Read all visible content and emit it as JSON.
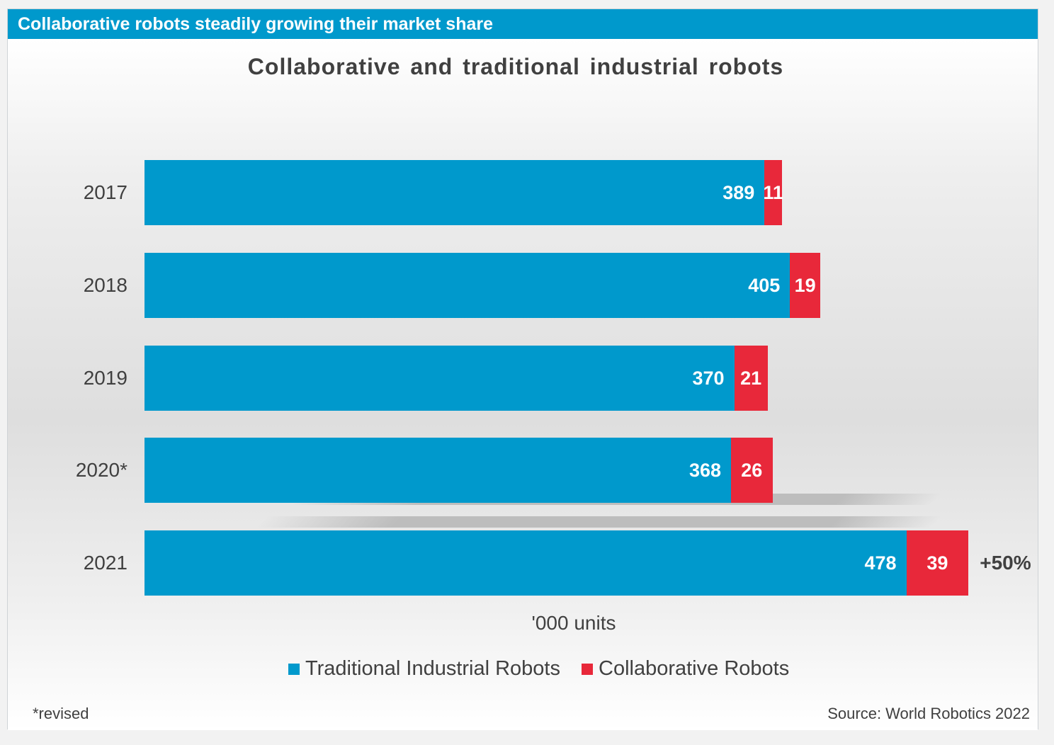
{
  "header": {
    "banner": "Collaborative robots steadily growing their market share"
  },
  "footer": {
    "note": "*revised",
    "source": "Source: World Robotics 2022"
  },
  "colors": {
    "traditional": "#0099cc",
    "collaborative": "#e8283a",
    "banner": "#0099cc"
  },
  "chart_data": {
    "type": "bar",
    "orientation": "horizontal",
    "stacked": true,
    "title": "Collaborative and traditional industrial robots",
    "xlabel": "'000 units",
    "categories": [
      "2017",
      "2018",
      "2019",
      "2020*",
      "2021"
    ],
    "series": [
      {
        "name": "Traditional Industrial Robots",
        "values": [
          389,
          405,
          370,
          368,
          478
        ]
      },
      {
        "name": "Collaborative Robots",
        "values": [
          11,
          19,
          21,
          26,
          39
        ]
      }
    ],
    "data_labels": {
      "traditional": [
        "389",
        "405",
        "370",
        "368",
        "478"
      ],
      "collaborative": [
        "11",
        "19",
        "21",
        "26",
        "39"
      ]
    },
    "annotation": "+50%",
    "legend_position": "bottom",
    "grid": false
  }
}
